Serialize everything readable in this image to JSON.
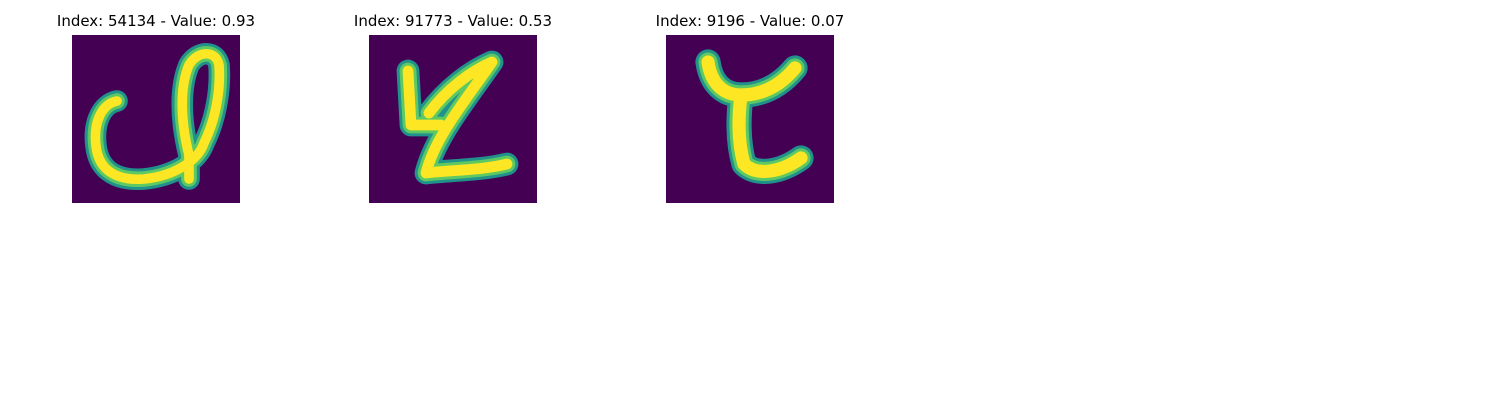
{
  "panels": [
    {
      "title": "Index: 54134 - Value: 0.93",
      "image": "digit-image-loop"
    },
    {
      "title": "Index: 91773 - Value: 0.53",
      "image": "digit-image-z"
    },
    {
      "title": "Index: 9196 - Value: 0.07",
      "image": "digit-image-y"
    }
  ],
  "colors": {
    "background": "#440154",
    "stroke_core": "#fde725",
    "stroke_mid": "#5ec962",
    "stroke_edge": "#21918c"
  }
}
